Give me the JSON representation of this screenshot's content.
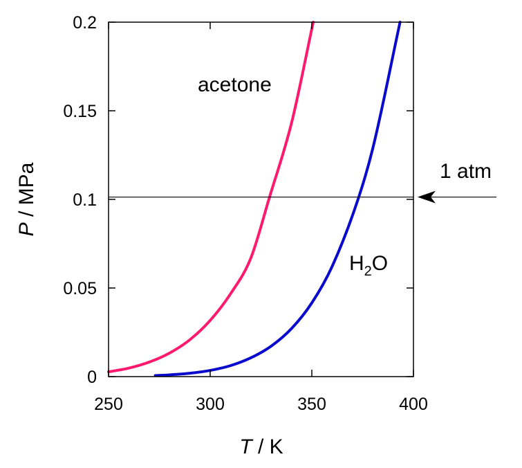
{
  "chart_data": {
    "type": "line",
    "xlabel": {
      "symbol": "T",
      "unit": " / K"
    },
    "ylabel": {
      "symbol": "P",
      "unit": " / MPa"
    },
    "xlim": [
      250,
      400
    ],
    "ylim": [
      0,
      0.2
    ],
    "xticks": [
      250,
      300,
      350,
      400
    ],
    "yticks": [
      0,
      0.05,
      0.1,
      0.15,
      0.2
    ],
    "xtick_labels": [
      "250",
      "300",
      "350",
      "400"
    ],
    "ytick_labels": [
      "0",
      "0.05",
      "0.1",
      "0.15",
      "0.2"
    ],
    "grid": false,
    "series": [
      {
        "name": "acetone",
        "color": "#ff1a6e",
        "x": [
          250,
          260,
          270,
          280,
          290,
          300,
          310,
          320,
          329.2,
          340,
          350.7
        ],
        "y": [
          0.0027,
          0.0048,
          0.0082,
          0.0133,
          0.0208,
          0.0317,
          0.0467,
          0.0669,
          0.1013,
          0.143,
          0.2
        ]
      },
      {
        "name": "H2O",
        "color": "#0a0acc",
        "x": [
          273,
          280,
          290,
          300,
          310,
          320,
          330,
          340,
          350,
          360,
          373.1,
          380,
          393.4
        ],
        "y": [
          0.0006,
          0.001,
          0.0019,
          0.0035,
          0.0062,
          0.0106,
          0.0172,
          0.0271,
          0.0416,
          0.0622,
          0.1013,
          0.1288,
          0.2
        ]
      }
    ],
    "reference_line": {
      "y": 0.1013,
      "label": "1 atm",
      "color": "#000000"
    },
    "annotations": {
      "acetone": "acetone",
      "water": {
        "main": "H",
        "sub": "2",
        "tail": "O"
      }
    }
  }
}
